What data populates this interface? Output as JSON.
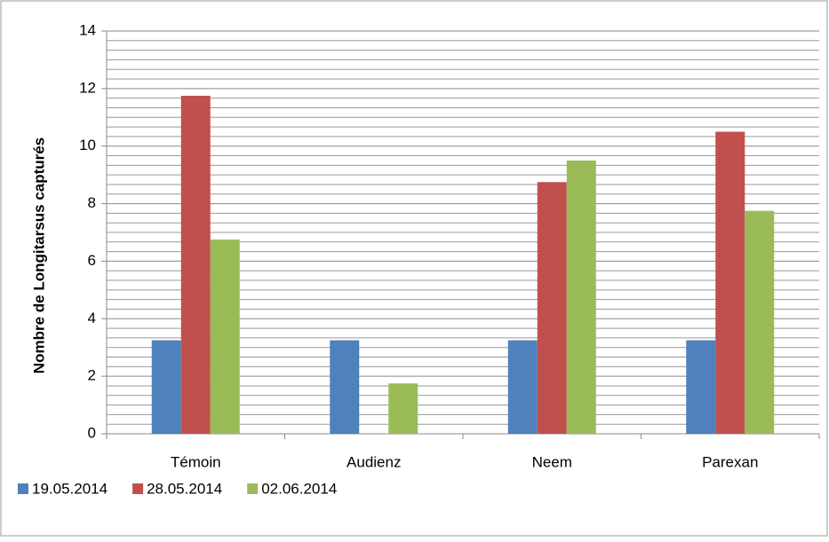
{
  "chart_data": {
    "type": "bar",
    "y_label": "Nombre de Longitarsus capturés",
    "categories": [
      "Témoin",
      "Audienz",
      "Neem",
      "Parexan"
    ],
    "series": [
      {
        "name": "19.05.2014",
        "color": "#4f81bd",
        "values": [
          3.25,
          3.25,
          3.25,
          3.25
        ]
      },
      {
        "name": "28.05.2014",
        "color": "#c0504d",
        "values": [
          11.75,
          0,
          8.75,
          10.5
        ]
      },
      {
        "name": "02.06.2014",
        "color": "#9bbb59",
        "values": [
          6.75,
          1.75,
          9.5,
          7.75
        ]
      }
    ],
    "ylim": [
      0,
      14
    ],
    "yticks": [
      0,
      2,
      4,
      6,
      8,
      10,
      12,
      14
    ],
    "grid": true,
    "minor_grid_divisions": 6,
    "legend": "bottom-left"
  }
}
